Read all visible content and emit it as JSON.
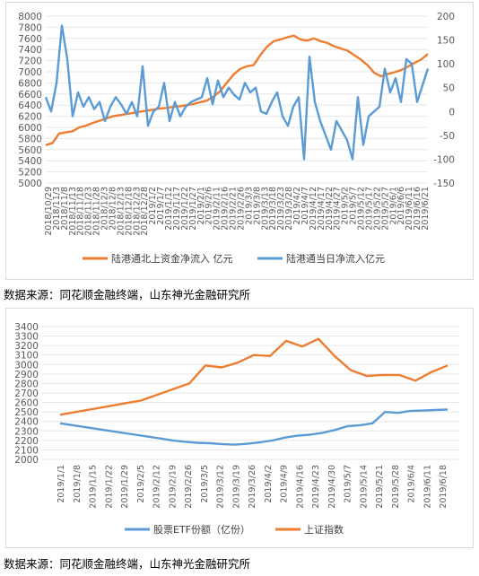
{
  "chart_data": [
    {
      "type": "line",
      "ylim": [
        5000,
        8000
      ],
      "ylim_right": [
        -150,
        200
      ],
      "left_ticks": [
        "8000",
        "7800",
        "7600",
        "7400",
        "7200",
        "7000",
        "6800",
        "6600",
        "6400",
        "6200",
        "6000",
        "5800",
        "5600",
        "5400",
        "5200",
        "5000"
      ],
      "right_ticks": [
        "200",
        "150",
        "100",
        "50",
        "0",
        "-50",
        "-100",
        "-150"
      ],
      "x_labels": [
        "2018/10/29",
        "2018/11/3",
        "2018/11/8",
        "2018/11/13",
        "2018/11/18",
        "2018/11/23",
        "2018/11/28",
        "2018/12/3",
        "2018/12/8",
        "2018/12/13",
        "2018/12/18",
        "2018/12/23",
        "2018/12/28",
        "2019/1/2",
        "2019/1/7",
        "2019/1/12",
        "2019/1/17",
        "2019/1/22",
        "2019/1/27",
        "2019/2/1",
        "2019/2/6",
        "2019/2/11",
        "2019/2/16",
        "2019/2/21",
        "2019/2/26",
        "2019/3/3",
        "2019/3/8",
        "2019/3/13",
        "2019/3/18",
        "2019/3/23",
        "2019/3/28",
        "2019/4/2",
        "2019/4/7",
        "2019/4/12",
        "2019/4/17",
        "2019/4/22",
        "2019/4/27",
        "2019/5/2",
        "2019/5/7",
        "2019/5/12",
        "2019/5/17",
        "2019/5/22",
        "2019/5/27",
        "2019/6/1",
        "2019/6/6",
        "2019/6/11",
        "2019/6/16",
        "2019/6/21"
      ],
      "grid": true,
      "legend": "bottom",
      "series": [
        {
          "name": "陆港通北上资金净流入 亿元",
          "axis": "left",
          "color": "#ED7D31",
          "values": [
            5680,
            5720,
            5890,
            5910,
            5930,
            6000,
            6030,
            6080,
            6120,
            6160,
            6200,
            6220,
            6240,
            6260,
            6280,
            6300,
            6320,
            6340,
            6350,
            6370,
            6380,
            6400,
            6420,
            6450,
            6480,
            6550,
            6650,
            6800,
            6950,
            7050,
            7100,
            7120,
            7300,
            7450,
            7550,
            7580,
            7620,
            7650,
            7580,
            7560,
            7600,
            7550,
            7520,
            7460,
            7420,
            7380,
            7300,
            7220,
            7120,
            6980,
            6920,
            6960,
            6990,
            7030,
            7090,
            7160,
            7220,
            7320
          ]
        },
        {
          "name": "陆港通当日净流入亿元",
          "axis": "right",
          "color": "#5B9BD5",
          "values": [
            30,
            0,
            60,
            180,
            110,
            -10,
            40,
            10,
            30,
            5,
            20,
            -20,
            10,
            30,
            15,
            -5,
            20,
            -10,
            95,
            -30,
            0,
            10,
            60,
            -20,
            20,
            -10,
            10,
            20,
            25,
            30,
            70,
            15,
            65,
            30,
            50,
            35,
            25,
            60,
            40,
            50,
            0,
            -5,
            20,
            40,
            -10,
            -30,
            10,
            30,
            -100,
            115,
            20,
            -20,
            -50,
            -80,
            -20,
            -40,
            -60,
            -100,
            30,
            -70,
            -10,
            0,
            10,
            90,
            40,
            70,
            20,
            110,
            100,
            20,
            55,
            90
          ]
        }
      ]
    },
    {
      "type": "line",
      "ylim": [
        2000,
        3400
      ],
      "left_ticks": [
        "3400",
        "3300",
        "3200",
        "3100",
        "3000",
        "2900",
        "2800",
        "2700",
        "2600",
        "2500",
        "2400",
        "2300",
        "2200",
        "2100",
        "2000"
      ],
      "x_labels": [
        "2019/1/1",
        "2019/1/8",
        "2019/1/15",
        "2019/1/22",
        "2019/1/29",
        "2019/2/5",
        "2019/2/12",
        "2019/2/19",
        "2019/2/26",
        "2019/3/5",
        "2019/3/12",
        "2019/3/19",
        "2019/3/26",
        "2019/4/2",
        "2019/4/9",
        "2019/4/16",
        "2019/4/23",
        "2019/4/30",
        "2019/5/7",
        "2019/5/14",
        "2019/5/21",
        "2019/5/28",
        "2019/6/4",
        "2019/6/11",
        "2019/6/18"
      ],
      "grid": true,
      "legend": "bottom",
      "series": [
        {
          "name": "股票ETF份额（亿份）",
          "color": "#5B9BD5",
          "values": [
            2380,
            2360,
            2340,
            2320,
            2300,
            2280,
            2260,
            2240,
            2220,
            2200,
            2185,
            2175,
            2170,
            2160,
            2155,
            2165,
            2180,
            2200,
            2230,
            2250,
            2260,
            2280,
            2310,
            2350,
            2360,
            2380,
            2500,
            2490,
            2510,
            2515,
            2520,
            2525
          ]
        },
        {
          "name": "上证指数",
          "color": "#ED7D31",
          "values": [
            2470,
            2500,
            2530,
            2560,
            2590,
            2620,
            2680,
            2740,
            2800,
            2990,
            2970,
            3020,
            3100,
            3090,
            3250,
            3190,
            3270,
            3090,
            2940,
            2880,
            2890,
            2890,
            2830,
            2920,
            2990
          ]
        }
      ]
    }
  ],
  "sources": [
    "数据来源：同花顺金融终端，山东神光金融研究所",
    "数据来源：同花顺金融终端，山东神光金融研究所"
  ]
}
